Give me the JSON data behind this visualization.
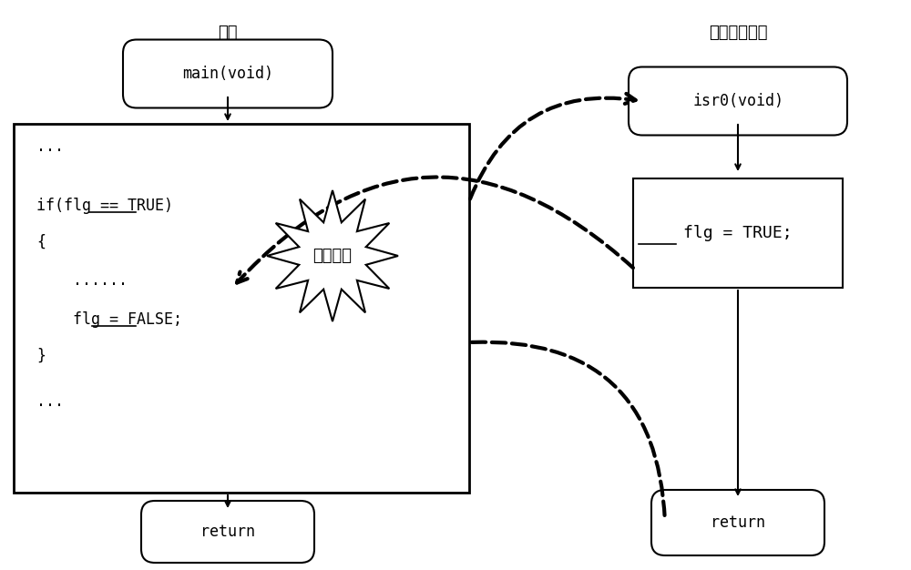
{
  "title_left": "任务",
  "title_right": "中断服务程序",
  "main_label": "main(void)",
  "isr_label": "isr0(void)",
  "return_left_label": "return",
  "return_right_label": "return",
  "flg_true_label": "flg = TRUE;",
  "code_lines": [
    "...",
    "",
    "if(flg == TRUE)",
    "{",
    "",
    "    ......",
    "    flg = FALSE;",
    "}",
    "",
    "..."
  ],
  "data_race_label": "数据竞争",
  "bg_color": "#ffffff",
  "box_color": "#000000",
  "text_color": "#000000",
  "arrow_color": "#000000",
  "dashed_color": "#000000",
  "starburst_color": "#ffffff",
  "starburst_stroke": "#000000"
}
